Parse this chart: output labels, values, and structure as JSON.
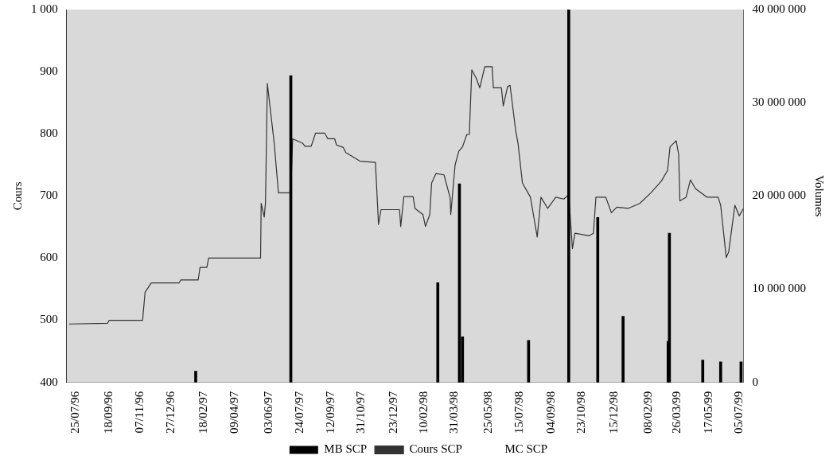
{
  "chart_data": {
    "type": "line",
    "ylabel": "Cours",
    "y2label": "Volumes",
    "legend": "bottom",
    "grid": false,
    "marker": "none",
    "xlim": [
      "1996-07-11",
      "1999-07-12"
    ],
    "xticks": [
      {
        "value": "1996-07-25",
        "label": "25/07/96"
      },
      {
        "value": "1996-09-18",
        "label": "18/09/96"
      },
      {
        "value": "1996-11-07",
        "label": "07/11/96"
      },
      {
        "value": "1996-12-27",
        "label": "27/12/96"
      },
      {
        "value": "1997-02-18",
        "label": "18/02/97"
      },
      {
        "value": "1997-04-09",
        "label": "09/04/97"
      },
      {
        "value": "1997-06-03",
        "label": "03/06/97"
      },
      {
        "value": "1997-07-24",
        "label": "24/07/97"
      },
      {
        "value": "1997-09-12",
        "label": "12/09/97"
      },
      {
        "value": "1997-10-31",
        "label": "31/10/97"
      },
      {
        "value": "1997-12-23",
        "label": "23/12/97"
      },
      {
        "value": "1998-02-10",
        "label": "10/02/98"
      },
      {
        "value": "1998-03-31",
        "label": "31/03/98"
      },
      {
        "value": "1998-05-25",
        "label": "25/05/98"
      },
      {
        "value": "1998-07-15",
        "label": "15/07/98"
      },
      {
        "value": "1998-09-04",
        "label": "04/09/98"
      },
      {
        "value": "1998-10-23",
        "label": "23/10/98"
      },
      {
        "value": "1998-12-15",
        "label": "15/12/98"
      },
      {
        "value": "1999-02-08",
        "label": "08/02/99"
      },
      {
        "value": "1999-03-26",
        "label": "26/03/99"
      },
      {
        "value": "1999-05-17",
        "label": "17/05/99"
      },
      {
        "value": "1999-07-05",
        "label": "05/07/99"
      }
    ],
    "ylim": [
      400,
      1000
    ],
    "yticks": [
      400,
      500,
      600,
      700,
      800,
      900,
      {
        "value": 1000,
        "label": "1 000"
      }
    ],
    "y2lim": [
      0,
      40000000
    ],
    "y2ticks": [
      0,
      {
        "value": 10000000,
        "label": "10 000 000"
      },
      {
        "value": 20000000,
        "label": "20 000 000"
      },
      {
        "value": 30000000,
        "label": "30 000 000"
      },
      {
        "value": 40000000,
        "label": "40 000 000"
      }
    ],
    "series": [
      {
        "name": "MB SCP",
        "type": "bar",
        "axis": "y2",
        "color": "#000000",
        "x": [
          "1997-02-05",
          "1997-07-09",
          "1998-03-04",
          "1998-04-08",
          "1998-04-13",
          "1998-07-29",
          "1998-10-02",
          "1998-11-18",
          "1998-12-29",
          "1999-03-12",
          "1999-03-14",
          "1999-05-07",
          "1999-06-05",
          "1999-07-08"
        ],
        "values": [
          1200000,
          32900000,
          10700000,
          21300000,
          4900000,
          4500000,
          40000000,
          17700000,
          7100000,
          4400000,
          16000000,
          2400000,
          2200000,
          2200000
        ]
      },
      {
        "name": "Cours SCP",
        "color": "#333333",
        "x": [
          "1996-07-15",
          "1996-09-15",
          "1996-09-18",
          "1996-11-11",
          "1996-11-15",
          "1996-11-25",
          "1997-01-09",
          "1997-01-12",
          "1997-02-09",
          "1997-02-12",
          "1997-02-23",
          "1997-02-26",
          "1997-05-21",
          "1997-05-22",
          "1997-05-27",
          "1997-05-29",
          "1997-06-01",
          "1997-06-12",
          "1997-06-19",
          "1997-07-09",
          "1997-07-12",
          "1997-07-28",
          "1997-08-01",
          "1997-08-11",
          "1997-08-18",
          "1997-09-02",
          "1997-09-07",
          "1997-09-18",
          "1997-09-21",
          "1997-10-02",
          "1997-10-06",
          "1997-10-29",
          "1997-11-23",
          "1997-11-28",
          "1997-12-02",
          "1998-01-01",
          "1998-01-03",
          "1998-01-08",
          "1998-01-23",
          "1998-01-26",
          "1998-02-08",
          "1998-02-12",
          "1998-02-19",
          "1998-02-22",
          "1998-03-01",
          "1998-03-14",
          "1998-03-24",
          "1998-03-25",
          "1998-04-01",
          "1998-04-07",
          "1998-04-13",
          "1998-04-20",
          "1998-04-24",
          "1998-04-28",
          "1998-05-05",
          "1998-05-11",
          "1998-05-19",
          "1998-05-31",
          "1998-06-02",
          "1998-06-15",
          "1998-06-18",
          "1998-06-25",
          "1998-06-29",
          "1998-07-08",
          "1998-07-12",
          "1998-07-19",
          "1998-08-01",
          "1998-08-12",
          "1998-08-18",
          "1998-08-29",
          "1998-09-11",
          "1998-09-24",
          "1998-10-02",
          "1998-10-08",
          "1998-10-12",
          "1998-11-04",
          "1998-11-11",
          "1998-11-15",
          "1998-12-01",
          "1998-12-10",
          "1998-12-19",
          "1999-01-06",
          "1999-01-25",
          "1999-02-12",
          "1999-03-01",
          "1999-03-11",
          "1999-03-15",
          "1999-03-25",
          "1999-03-29",
          "1999-03-31",
          "1999-04-10",
          "1999-04-17",
          "1999-04-25",
          "1999-05-14",
          "1999-06-01",
          "1999-06-05",
          "1999-06-14",
          "1999-06-18",
          "1999-06-28",
          "1999-07-05",
          "1999-07-12"
        ],
        "values": [
          494,
          495,
          500,
          500,
          545,
          560,
          560,
          565,
          565,
          585,
          585,
          600,
          600,
          688,
          666,
          690,
          881,
          786,
          705,
          705,
          792,
          785,
          780,
          780,
          801,
          801,
          792,
          792,
          782,
          778,
          770,
          756,
          754,
          654,
          678,
          678,
          651,
          699,
          699,
          680,
          670,
          651,
          670,
          721,
          736,
          734,
          697,
          670,
          750,
          772,
          779,
          799,
          799,
          903,
          890,
          874,
          908,
          908,
          874,
          874,
          845,
          876,
          878,
          806,
          784,
          721,
          698,
          634,
          698,
          680,
          698,
          695,
          702,
          615,
          640,
          636,
          640,
          698,
          698,
          673,
          682,
          680,
          688,
          705,
          724,
          741,
          779,
          789,
          767,
          692,
          698,
          726,
          712,
          698,
          698,
          685,
          601,
          610,
          685,
          668,
          680
        ]
      },
      {
        "name": "MC SCP"
      }
    ]
  }
}
